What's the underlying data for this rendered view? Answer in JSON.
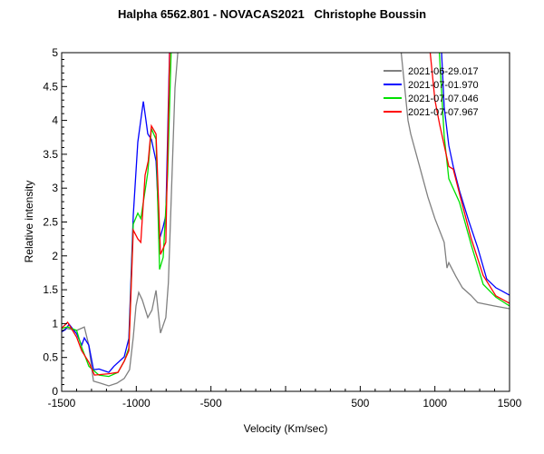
{
  "chart_data": {
    "type": "line",
    "title": "Halpha 6562.801 - NOVACAS2021   Christophe Boussin",
    "xlabel": "Velocity (Km/sec)",
    "ylabel": "Relative intensity",
    "xlim": [
      -1500,
      1500
    ],
    "ylim": [
      0,
      5
    ],
    "xticks": [
      -1500,
      -1000,
      -500,
      500,
      1000,
      1500
    ],
    "xtick_labels": [
      "-1500",
      "-1000",
      "-500",
      "500",
      "1000",
      "1500"
    ],
    "yticks": [
      0,
      0.5,
      1,
      1.5,
      2,
      2.5,
      3,
      3.5,
      4,
      4.5,
      5
    ],
    "ytick_labels": [
      "0",
      "0.5",
      "1",
      "1.5",
      "2",
      "2.5",
      "3",
      "3.5",
      "4",
      "4.5",
      "5"
    ],
    "grid": false,
    "legend_position": "top-right",
    "series": [
      {
        "name": "2021-06-29.017",
        "color": "#808080",
        "x": [
          -1490,
          -1470,
          -1400,
          -1348,
          -1320,
          -1287,
          -1240,
          -1184,
          -1130,
          -1081,
          -1045,
          -1020,
          -1002,
          -984,
          -960,
          -923,
          -895,
          -868,
          -838,
          -802,
          -785,
          -741,
          -700,
          null,
          747,
          820,
          838,
          900,
          953,
          1000,
          1062,
          1081,
          1093,
          1140,
          1184,
          1240,
          1287,
          1400,
          1500
        ],
        "y": [
          0.9,
          0.93,
          0.9,
          0.95,
          0.7,
          0.15,
          0.12,
          0.08,
          0.12,
          0.19,
          0.32,
          0.8,
          1.26,
          1.46,
          1.35,
          1.09,
          1.2,
          1.49,
          0.86,
          1.09,
          1.6,
          4.48,
          5,
          null,
          5,
          4.0,
          3.8,
          3.3,
          2.87,
          2.55,
          2.2,
          1.82,
          1.9,
          1.7,
          1.53,
          1.42,
          1.31,
          1.26,
          1.22
        ]
      },
      {
        "name": "2021-07-01.970",
        "color": "#0000ff",
        "x": [
          -1500,
          -1476,
          -1450,
          -1400,
          -1366,
          -1348,
          -1318,
          -1287,
          -1250,
          -1184,
          -1150,
          -1081,
          -1050,
          -1020,
          -990,
          -953,
          -935,
          -923,
          -899,
          -868,
          -844,
          -820,
          -802,
          -771,
          null,
          1032,
          1062,
          1093,
          1123,
          1165,
          1226,
          1287,
          1347,
          1408,
          1450,
          1500
        ],
        "y": [
          0.88,
          0.91,
          0.99,
          0.85,
          0.68,
          0.79,
          0.68,
          0.32,
          0.33,
          0.28,
          0.37,
          0.51,
          0.78,
          2.6,
          3.68,
          4.28,
          4.0,
          3.8,
          3.72,
          3.4,
          2.25,
          2.43,
          2.6,
          5,
          null,
          5,
          4.2,
          3.63,
          3.32,
          2.96,
          2.52,
          2.12,
          1.66,
          1.53,
          1.48,
          1.42
        ]
      },
      {
        "name": "2021-07-07.046",
        "color": "#00e000",
        "x": [
          -1500,
          -1460,
          -1400,
          -1366,
          -1318,
          -1250,
          -1184,
          -1123,
          -1080,
          -1050,
          -1020,
          -990,
          -970,
          -941,
          -923,
          -899,
          -868,
          -844,
          -820,
          -790,
          -759,
          null,
          1014,
          1062,
          1093,
          1165,
          1244,
          1323,
          1408,
          1500
        ],
        "y": [
          0.93,
          0.95,
          0.9,
          0.65,
          0.37,
          0.24,
          0.22,
          0.28,
          0.45,
          0.64,
          2.47,
          2.63,
          2.55,
          2.96,
          3.23,
          3.88,
          3.72,
          1.8,
          1.98,
          3.2,
          5,
          null,
          5,
          3.77,
          3.14,
          2.79,
          2.16,
          1.58,
          1.39,
          1.26
        ]
      },
      {
        "name": "2021-07-07.967",
        "color": "#ff0000",
        "x": [
          -1500,
          -1460,
          -1400,
          -1366,
          -1318,
          -1280,
          -1184,
          -1123,
          -1080,
          -1050,
          -1020,
          -990,
          -970,
          -941,
          -920,
          -899,
          -868,
          -838,
          -802,
          -771,
          null,
          941,
          1000,
          1032,
          1093,
          1123,
          1165,
          1244,
          1323,
          1408,
          1500
        ],
        "y": [
          0.93,
          1.02,
          0.8,
          0.6,
          0.43,
          0.24,
          0.26,
          0.28,
          0.45,
          0.6,
          2.38,
          2.25,
          2.2,
          3.19,
          3.4,
          3.92,
          3.8,
          2.02,
          2.2,
          5,
          null,
          5,
          4.3,
          3.94,
          3.32,
          3.28,
          2.92,
          2.25,
          1.71,
          1.41,
          1.3
        ]
      }
    ]
  }
}
